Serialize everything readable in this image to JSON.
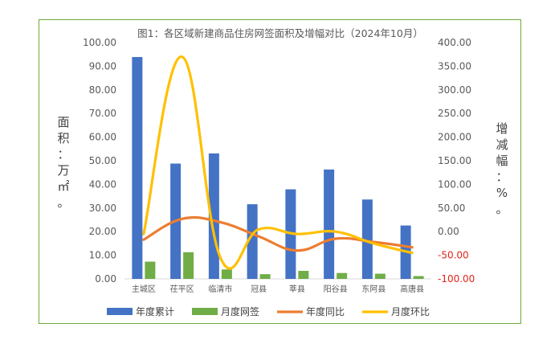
{
  "chart_data": {
    "type": "bar",
    "title": "图1：各区域新建商品住房网签面积及增幅对比（2024年10月）",
    "categories": [
      "主城区",
      "茌平区",
      "临清市",
      "冠县",
      "莘县",
      "阳谷县",
      "东阿县",
      "高唐县"
    ],
    "ylabel_left": "面积：万㎡。",
    "ylabel_right": "增减幅：%。",
    "ylim_left": [
      0,
      100
    ],
    "ylim_right": [
      -100,
      400
    ],
    "yticks_left": [
      "0.00",
      "10.00",
      "20.00",
      "30.00",
      "40.00",
      "50.00",
      "60.00",
      "70.00",
      "80.00",
      "90.00",
      "100.00"
    ],
    "yticks_right": [
      "-100.00",
      "-50.00",
      "0.00",
      "50.00",
      "100.00",
      "150.00",
      "200.00",
      "250.00",
      "300.00",
      "350.00",
      "400.00"
    ],
    "series": [
      {
        "name": "年度累计",
        "type": "bar",
        "axis": "left",
        "color": "#4472c4",
        "values": [
          93.9,
          48.8,
          53.1,
          31.6,
          37.9,
          46.3,
          33.6,
          22.6
        ]
      },
      {
        "name": "月度网签",
        "type": "bar",
        "axis": "left",
        "color": "#70ad47",
        "values": [
          7.3,
          11.3,
          4.0,
          2.0,
          3.4,
          2.5,
          2.2,
          1.2
        ]
      },
      {
        "name": "年度同比",
        "type": "line",
        "axis": "right",
        "color": "#ed7d31",
        "values": [
          -17,
          27,
          20,
          -10,
          -40,
          -15,
          -22,
          -33
        ]
      },
      {
        "name": "月度环比",
        "type": "line",
        "axis": "right",
        "color": "#ffc000",
        "values": [
          -5,
          370,
          -55,
          5,
          -5,
          0,
          -25,
          -45
        ]
      }
    ],
    "grid": false,
    "legend_position": "bottom"
  }
}
